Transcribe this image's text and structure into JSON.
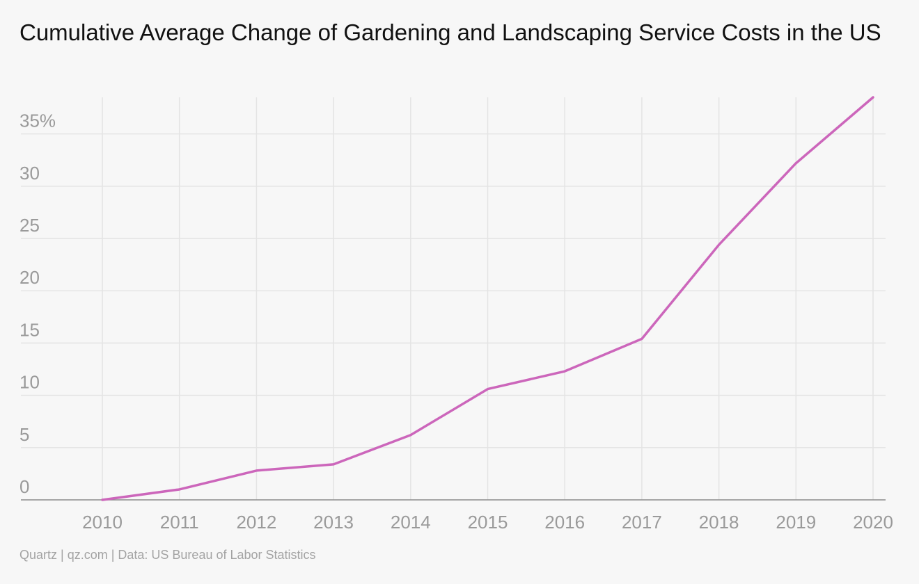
{
  "chart_data": {
    "type": "line",
    "title": "Cumulative Average Change of Gardening and Landscaping Service Costs in the US",
    "x": [
      "2010",
      "2011",
      "2012",
      "2013",
      "2014",
      "2015",
      "2016",
      "2017",
      "2018",
      "2019",
      "2020"
    ],
    "series": [
      {
        "values": [
          0,
          1.0,
          2.8,
          3.4,
          6.2,
          10.6,
          12.3,
          15.4,
          24.4,
          32.2,
          38.5
        ]
      }
    ],
    "y_ticks": [
      "0",
      "5",
      "10",
      "15",
      "20",
      "25",
      "30",
      "35%"
    ],
    "y_tick_values": [
      0,
      5,
      10,
      15,
      20,
      25,
      30,
      35
    ],
    "ylim": [
      0,
      38.5
    ],
    "grid": true,
    "line_color": "#cc66bb"
  },
  "source": "Quartz | qz.com | Data: US Bureau of Labor Statistics"
}
